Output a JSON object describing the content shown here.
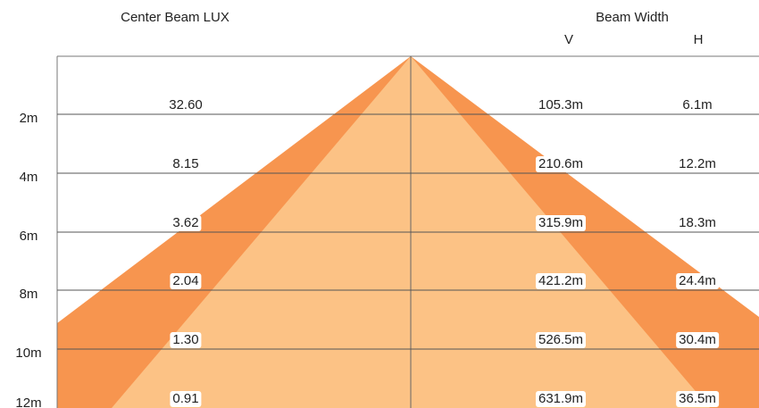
{
  "header": {
    "lux_title": "Center Beam LUX",
    "beam_width_title": "Beam Width",
    "v_title": "V",
    "h_title": "H"
  },
  "rows": [
    {
      "distance": "2m",
      "lux": "32.60",
      "v": "105.3m",
      "h": "6.1m"
    },
    {
      "distance": "4m",
      "lux": "8.15",
      "v": "210.6m",
      "h": "12.2m"
    },
    {
      "distance": "6m",
      "lux": "3.62",
      "v": "315.9m",
      "h": "18.3m"
    },
    {
      "distance": "8m",
      "lux": "2.04",
      "v": "421.2m",
      "h": "24.4m"
    },
    {
      "distance": "10m",
      "lux": "1.30",
      "v": "526.5m",
      "h": "30.4m"
    },
    {
      "distance": "12m",
      "lux": "0.91",
      "v": "631.9m",
      "h": "36.5m"
    }
  ]
}
